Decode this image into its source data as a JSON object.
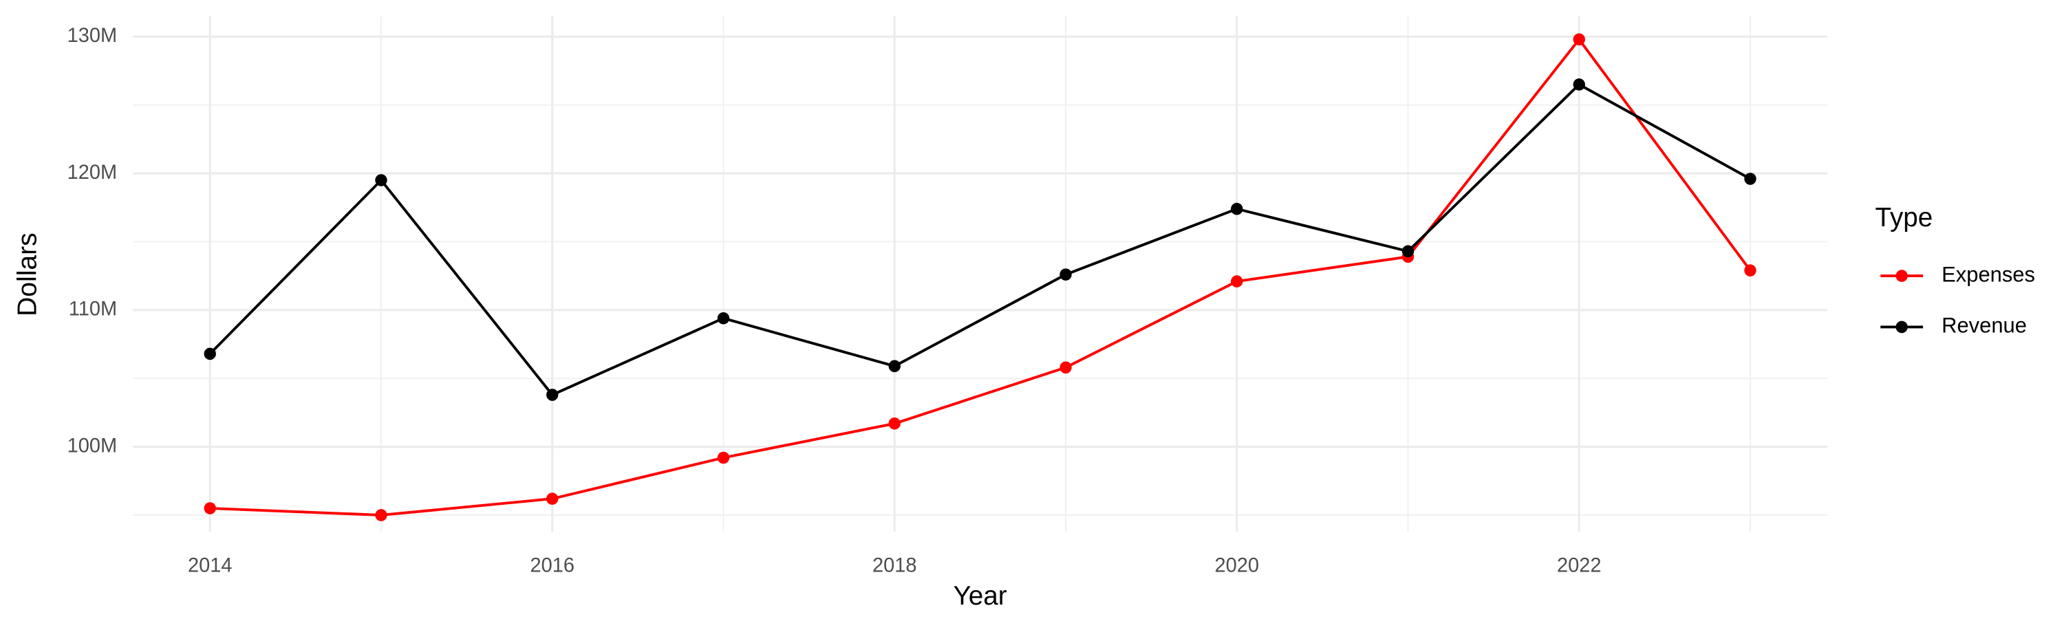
{
  "chart_data": {
    "type": "line",
    "x_label": "Year",
    "y_label": "Dollars",
    "legend_title": "Type",
    "legend_position": "right",
    "grid": true,
    "x": [
      2014,
      2015,
      2016,
      2017,
      2018,
      2019,
      2020,
      2021,
      2022,
      2023
    ],
    "series": [
      {
        "name": "Expenses",
        "color": "#ff0000",
        "values": [
          95500000,
          95000000,
          96200000,
          99200000,
          101700000,
          105800000,
          112100000,
          113900000,
          129800000,
          112900000
        ]
      },
      {
        "name": "Revenue",
        "color": "#000000",
        "values": [
          106800000,
          119500000,
          103800000,
          109400000,
          105900000,
          112600000,
          117400000,
          114300000,
          126500000,
          119600000
        ]
      }
    ],
    "xlim": [
      2013.55,
      2023.45
    ],
    "xticks": [
      2014,
      2016,
      2018,
      2020,
      2022
    ],
    "ylim": [
      93800000,
      131500000
    ],
    "yticks": [
      {
        "value": 100000000,
        "label": "100M"
      },
      {
        "value": 110000000,
        "label": "110M"
      },
      {
        "value": 120000000,
        "label": "120M"
      },
      {
        "value": 130000000,
        "label": "130M"
      }
    ]
  }
}
